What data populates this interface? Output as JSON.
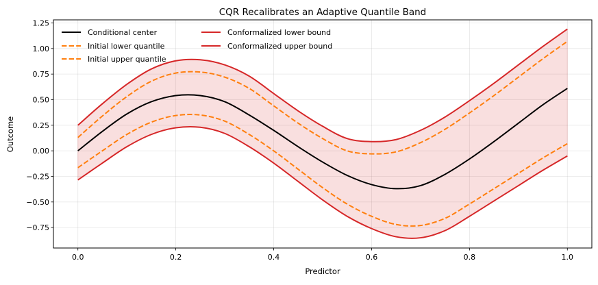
{
  "chart_data": {
    "type": "line",
    "title": "CQR Recalibrates an Adaptive Quantile Band",
    "xlabel": "Predictor",
    "ylabel": "Outcome",
    "xlim": [
      -0.05,
      1.05
    ],
    "ylim": [
      -0.95,
      1.28
    ],
    "xticks": [
      0.0,
      0.2,
      0.4,
      0.6,
      0.8,
      1.0
    ],
    "xtick_labels": [
      "0.0",
      "0.2",
      "0.4",
      "0.6",
      "0.8",
      "1.0"
    ],
    "yticks": [
      -0.75,
      -0.5,
      -0.25,
      0.0,
      0.25,
      0.5,
      0.75,
      1.0,
      1.25
    ],
    "ytick_labels": [
      "−0.75",
      "−0.50",
      "−0.25",
      "0.00",
      "0.25",
      "0.50",
      "0.75",
      "1.00",
      "1.25"
    ],
    "grid": true,
    "legend_placement": "top-left",
    "legend_columns": 2,
    "x": [
      0.0,
      0.05,
      0.1,
      0.15,
      0.2,
      0.25,
      0.3,
      0.35,
      0.4,
      0.45,
      0.5,
      0.55,
      0.6,
      0.65,
      0.7,
      0.75,
      0.8,
      0.85,
      0.9,
      0.95,
      1.0
    ],
    "band": {
      "name": "Conformalized band",
      "color": "#d62728",
      "opacity": 0.15
    },
    "series": [
      {
        "name": "Conditional center",
        "color": "#000000",
        "style": "solid",
        "values": [
          0.0,
          0.19,
          0.36,
          0.48,
          0.54,
          0.54,
          0.48,
          0.35,
          0.2,
          0.04,
          -0.11,
          -0.24,
          -0.33,
          -0.37,
          -0.34,
          -0.23,
          -0.08,
          0.09,
          0.27,
          0.45,
          0.61
        ]
      },
      {
        "name": "Initial lower quantile",
        "color": "#ff7f0e",
        "style": "dashed",
        "values": [
          -0.165,
          0.0,
          0.16,
          0.28,
          0.345,
          0.35,
          0.29,
          0.16,
          0.0,
          -0.18,
          -0.36,
          -0.52,
          -0.64,
          -0.72,
          -0.73,
          -0.66,
          -0.52,
          -0.37,
          -0.22,
          -0.07,
          0.07
        ]
      },
      {
        "name": "Initial upper quantile",
        "color": "#ff7f0e",
        "style": "dashed",
        "values": [
          0.13,
          0.34,
          0.53,
          0.68,
          0.76,
          0.77,
          0.72,
          0.61,
          0.44,
          0.27,
          0.12,
          0.0,
          -0.03,
          -0.01,
          0.08,
          0.21,
          0.37,
          0.54,
          0.72,
          0.9,
          1.07
        ]
      },
      {
        "name": "Conformalized lower bound",
        "color": "#d62728",
        "style": "solid",
        "values": [
          -0.285,
          -0.12,
          0.04,
          0.16,
          0.225,
          0.23,
          0.17,
          0.04,
          -0.12,
          -0.3,
          -0.48,
          -0.64,
          -0.76,
          -0.84,
          -0.85,
          -0.78,
          -0.64,
          -0.49,
          -0.34,
          -0.19,
          -0.05
        ]
      },
      {
        "name": "Conformalized upper bound",
        "color": "#d62728",
        "style": "solid",
        "values": [
          0.25,
          0.46,
          0.65,
          0.8,
          0.88,
          0.89,
          0.84,
          0.73,
          0.56,
          0.39,
          0.24,
          0.12,
          0.09,
          0.11,
          0.2,
          0.33,
          0.49,
          0.66,
          0.84,
          1.02,
          1.19
        ]
      }
    ]
  }
}
